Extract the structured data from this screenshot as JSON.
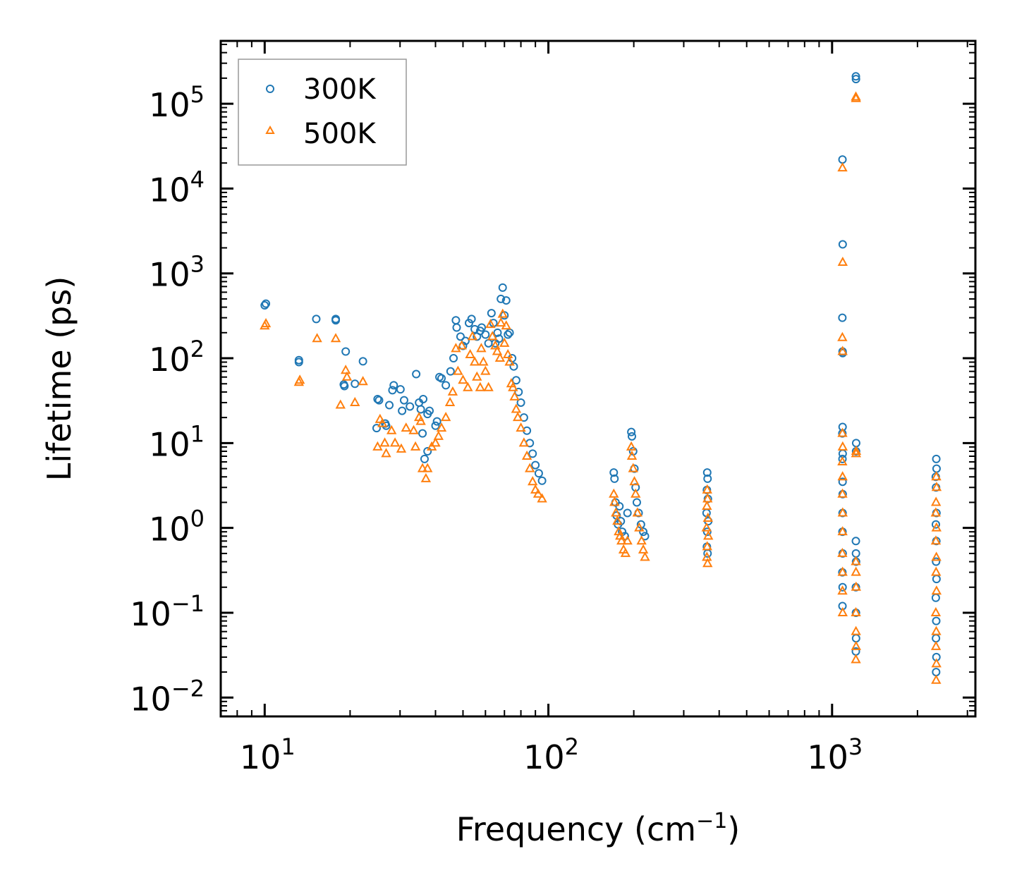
{
  "chart_data": {
    "type": "scatter",
    "title": "",
    "xlabel": "Frequency (cm",
    "xlabel_sup": "−1",
    "xlabel_end": ")",
    "ylabel": "Lifetime (ps)",
    "xscale": "log",
    "yscale": "log",
    "xlim": [
      7,
      3200
    ],
    "ylim": [
      0.006,
      550000
    ],
    "x_ticks": [
      {
        "value": 10,
        "base": "10",
        "exp": "1"
      },
      {
        "value": 100,
        "base": "10",
        "exp": "2"
      },
      {
        "value": 1000,
        "base": "10",
        "exp": "3"
      }
    ],
    "y_ticks": [
      {
        "value": 0.01,
        "base": "10",
        "exp": "−2"
      },
      {
        "value": 0.1,
        "base": "10",
        "exp": "−1"
      },
      {
        "value": 1,
        "base": "10",
        "exp": "0"
      },
      {
        "value": 10,
        "base": "10",
        "exp": "1"
      },
      {
        "value": 100,
        "base": "10",
        "exp": "2"
      },
      {
        "value": 1000,
        "base": "10",
        "exp": "3"
      },
      {
        "value": 10000,
        "base": "10",
        "exp": "4"
      },
      {
        "value": 100000,
        "base": "10",
        "exp": "5"
      }
    ],
    "legend_position": "top-left",
    "series": [
      {
        "name": "300K",
        "marker": "circle",
        "color": "#1f77b4",
        "points": [
          [
            10,
            420
          ],
          [
            10.1,
            440
          ],
          [
            13.2,
            90
          ],
          [
            13.2,
            95
          ],
          [
            15.2,
            290
          ],
          [
            17.8,
            290
          ],
          [
            17.8,
            280
          ],
          [
            19.3,
            120
          ],
          [
            19.1,
            47
          ],
          [
            19,
            49
          ],
          [
            20.8,
            50
          ],
          [
            22.2,
            92
          ],
          [
            25,
            33
          ],
          [
            25.3,
            32
          ],
          [
            27.5,
            28
          ],
          [
            28.2,
            42
          ],
          [
            28.5,
            48
          ],
          [
            26.6,
            17
          ],
          [
            26.8,
            16
          ],
          [
            24.8,
            15
          ],
          [
            30.1,
            43
          ],
          [
            31,
            32
          ],
          [
            32.5,
            27
          ],
          [
            30.5,
            24
          ],
          [
            34.2,
            65
          ],
          [
            35,
            30
          ],
          [
            35.5,
            25
          ],
          [
            36.2,
            33
          ],
          [
            37.5,
            22
          ],
          [
            38.1,
            24
          ],
          [
            36,
            13
          ],
          [
            36.6,
            6.5
          ],
          [
            37.5,
            8
          ],
          [
            40,
            16
          ],
          [
            40.5,
            18
          ],
          [
            41.3,
            60
          ],
          [
            42,
            58
          ],
          [
            43.5,
            48
          ],
          [
            45.2,
            70
          ],
          [
            46.3,
            100
          ],
          [
            47.2,
            280
          ],
          [
            47.5,
            230
          ],
          [
            49,
            180
          ],
          [
            50,
            140
          ],
          [
            51,
            160
          ],
          [
            52.5,
            260
          ],
          [
            53.6,
            290
          ],
          [
            55,
            220
          ],
          [
            56,
            180
          ],
          [
            57.5,
            210
          ],
          [
            58.2,
            230
          ],
          [
            60,
            190
          ],
          [
            61.5,
            150
          ],
          [
            63,
            340
          ],
          [
            64,
            260
          ],
          [
            65,
            150
          ],
          [
            66.2,
            200
          ],
          [
            67,
            170
          ],
          [
            68,
            500
          ],
          [
            69,
            680
          ],
          [
            70,
            320
          ],
          [
            71,
            480
          ],
          [
            72,
            190
          ],
          [
            73,
            200
          ],
          [
            74.5,
            100
          ],
          [
            75.5,
            80
          ],
          [
            77,
            55
          ],
          [
            78.5,
            40
          ],
          [
            80,
            30
          ],
          [
            82,
            20
          ],
          [
            84,
            14
          ],
          [
            86,
            10
          ],
          [
            88,
            7.5
          ],
          [
            90,
            5.5
          ],
          [
            92.5,
            4.4
          ],
          [
            95,
            3.6
          ],
          [
            170,
            4.5
          ],
          [
            171,
            3.8
          ],
          [
            172.5,
            2
          ],
          [
            174,
            1.4
          ],
          [
            176,
            1.1
          ],
          [
            178,
            1.8
          ],
          [
            180,
            1.2
          ],
          [
            182,
            0.9
          ],
          [
            186,
            0.8
          ],
          [
            190,
            1.5
          ],
          [
            196,
            13.5
          ],
          [
            197,
            12
          ],
          [
            199,
            8
          ],
          [
            201,
            5
          ],
          [
            203,
            3
          ],
          [
            205,
            2
          ],
          [
            208,
            1.5
          ],
          [
            212,
            1.1
          ],
          [
            216,
            0.9
          ],
          [
            219,
            0.8
          ],
          [
            363,
            4.5
          ],
          [
            364,
            3.8
          ],
          [
            362,
            2.8
          ],
          [
            365,
            2.2
          ],
          [
            361,
            1.5
          ],
          [
            366,
            1.2
          ],
          [
            363,
            0.9
          ],
          [
            362,
            0.6
          ],
          [
            364,
            0.5
          ],
          [
            1088,
            22000
          ],
          [
            1090,
            2200
          ],
          [
            1087,
            300
          ],
          [
            1089,
            120
          ],
          [
            1090,
            115
          ],
          [
            1089,
            15.5
          ],
          [
            1087,
            13
          ],
          [
            1090,
            7.5
          ],
          [
            1088,
            6.5
          ],
          [
            1089,
            3.5
          ],
          [
            1090,
            2.5
          ],
          [
            1089,
            1.5
          ],
          [
            1088,
            0.9
          ],
          [
            1090,
            0.5
          ],
          [
            1087,
            0.3
          ],
          [
            1089,
            0.2
          ],
          [
            1088,
            0.12
          ],
          [
            1213,
            210000
          ],
          [
            1214,
            195000
          ],
          [
            1216,
            10
          ],
          [
            1215,
            8
          ],
          [
            1213,
            0.7
          ],
          [
            1214,
            0.5
          ],
          [
            1215,
            0.4
          ],
          [
            1213,
            0.2
          ],
          [
            1214,
            0.1
          ],
          [
            1215,
            0.05
          ],
          [
            1213,
            0.035
          ],
          [
            2320,
            4
          ],
          [
            2330,
            6.5
          ],
          [
            2335,
            5
          ],
          [
            2325,
            3
          ],
          [
            2333,
            1.5
          ],
          [
            2322,
            1.1
          ],
          [
            2331,
            0.7
          ],
          [
            2326,
            0.4
          ],
          [
            2334,
            0.25
          ],
          [
            2321,
            0.15
          ],
          [
            2329,
            0.08
          ],
          [
            2324,
            0.05
          ],
          [
            2332,
            0.03
          ],
          [
            2327,
            0.02
          ]
        ]
      },
      {
        "name": "500K",
        "marker": "triangle",
        "color": "#ff7f0e",
        "points": [
          [
            10,
            240
          ],
          [
            10.1,
            255
          ],
          [
            13.2,
            52
          ],
          [
            13.3,
            55
          ],
          [
            15.3,
            170
          ],
          [
            17.8,
            170
          ],
          [
            18.5,
            28
          ],
          [
            19.3,
            72
          ],
          [
            19.5,
            60
          ],
          [
            20.8,
            30
          ],
          [
            22.2,
            53
          ],
          [
            25,
            9
          ],
          [
            25.5,
            19
          ],
          [
            26,
            17
          ],
          [
            26.5,
            10
          ],
          [
            26.8,
            7.5
          ],
          [
            28,
            14
          ],
          [
            28.8,
            10
          ],
          [
            30.3,
            8.5
          ],
          [
            31.5,
            15
          ],
          [
            33.5,
            14
          ],
          [
            34,
            9
          ],
          [
            35,
            20
          ],
          [
            35.5,
            18
          ],
          [
            36,
            5
          ],
          [
            37,
            3.8
          ],
          [
            37.5,
            5
          ],
          [
            38.8,
            9
          ],
          [
            40,
            10
          ],
          [
            41,
            12
          ],
          [
            42,
            15
          ],
          [
            43.5,
            20
          ],
          [
            45,
            30
          ],
          [
            46,
            40
          ],
          [
            47.2,
            130
          ],
          [
            48,
            70
          ],
          [
            49.5,
            140
          ],
          [
            50,
            55
          ],
          [
            52,
            45
          ],
          [
            53,
            110
          ],
          [
            54,
            180
          ],
          [
            55,
            90
          ],
          [
            56,
            60
          ],
          [
            57.5,
            45
          ],
          [
            58,
            130
          ],
          [
            59,
            90
          ],
          [
            60,
            70
          ],
          [
            61.5,
            45
          ],
          [
            62.5,
            250
          ],
          [
            63.5,
            180
          ],
          [
            65,
            140
          ],
          [
            66,
            120
          ],
          [
            67.5,
            100
          ],
          [
            68,
            260
          ],
          [
            69,
            330
          ],
          [
            70,
            150
          ],
          [
            71,
            240
          ],
          [
            72,
            110
          ],
          [
            73,
            90
          ],
          [
            74,
            50
          ],
          [
            75,
            45
          ],
          [
            76,
            35
          ],
          [
            77,
            25
          ],
          [
            78,
            20
          ],
          [
            80,
            15
          ],
          [
            82,
            10
          ],
          [
            84,
            7
          ],
          [
            86,
            5
          ],
          [
            88,
            3.5
          ],
          [
            90,
            2.8
          ],
          [
            92,
            2.5
          ],
          [
            95,
            2.2
          ],
          [
            170,
            2.5
          ],
          [
            171,
            2
          ],
          [
            173,
            1.5
          ],
          [
            175,
            1.2
          ],
          [
            177,
            0.9
          ],
          [
            179,
            0.8
          ],
          [
            181,
            0.7
          ],
          [
            184,
            0.55
          ],
          [
            187,
            0.5
          ],
          [
            190,
            0.7
          ],
          [
            196,
            9
          ],
          [
            197,
            7
          ],
          [
            199,
            5
          ],
          [
            201,
            3.5
          ],
          [
            203,
            2.5
          ],
          [
            206,
            1.5
          ],
          [
            209,
            1
          ],
          [
            213,
            0.7
          ],
          [
            216,
            0.55
          ],
          [
            219,
            0.45
          ],
          [
            363,
            2.8
          ],
          [
            364,
            2.2
          ],
          [
            362,
            1.8
          ],
          [
            365,
            1.3
          ],
          [
            361,
            1
          ],
          [
            366,
            0.8
          ],
          [
            363,
            0.6
          ],
          [
            362,
            0.45
          ],
          [
            364,
            0.38
          ],
          [
            1088,
            17500
          ],
          [
            1090,
            1350
          ],
          [
            1087,
            175
          ],
          [
            1089,
            120
          ],
          [
            1088,
            13
          ],
          [
            1090,
            9
          ],
          [
            1087,
            6
          ],
          [
            1089,
            4
          ],
          [
            1088,
            2.5
          ],
          [
            1090,
            1.5
          ],
          [
            1089,
            0.9
          ],
          [
            1087,
            0.5
          ],
          [
            1089,
            0.3
          ],
          [
            1088,
            0.18
          ],
          [
            1090,
            0.1
          ],
          [
            1213,
            120000
          ],
          [
            1214,
            115000
          ],
          [
            1216,
            8
          ],
          [
            1215,
            7.5
          ],
          [
            1213,
            0.4
          ],
          [
            1214,
            0.3
          ],
          [
            1215,
            0.2
          ],
          [
            1213,
            0.1
          ],
          [
            1214,
            0.06
          ],
          [
            1215,
            0.04
          ],
          [
            1213,
            0.028
          ],
          [
            2320,
            1.5
          ],
          [
            2330,
            4
          ],
          [
            2335,
            3
          ],
          [
            2325,
            2
          ],
          [
            2333,
            1
          ],
          [
            2322,
            0.7
          ],
          [
            2331,
            0.45
          ],
          [
            2326,
            0.3
          ],
          [
            2334,
            0.18
          ],
          [
            2321,
            0.1
          ],
          [
            2329,
            0.06
          ],
          [
            2324,
            0.04
          ],
          [
            2332,
            0.025
          ],
          [
            2327,
            0.016
          ]
        ]
      }
    ]
  }
}
